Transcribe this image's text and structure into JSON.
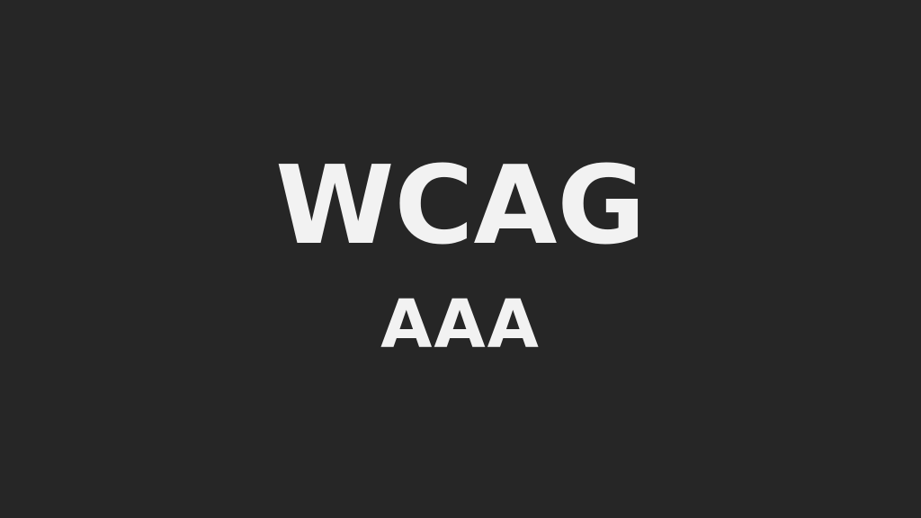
{
  "title": "WCAG",
  "subtitle": "AAA",
  "colors": {
    "background": "#262626",
    "text": "#f2f2f2"
  }
}
